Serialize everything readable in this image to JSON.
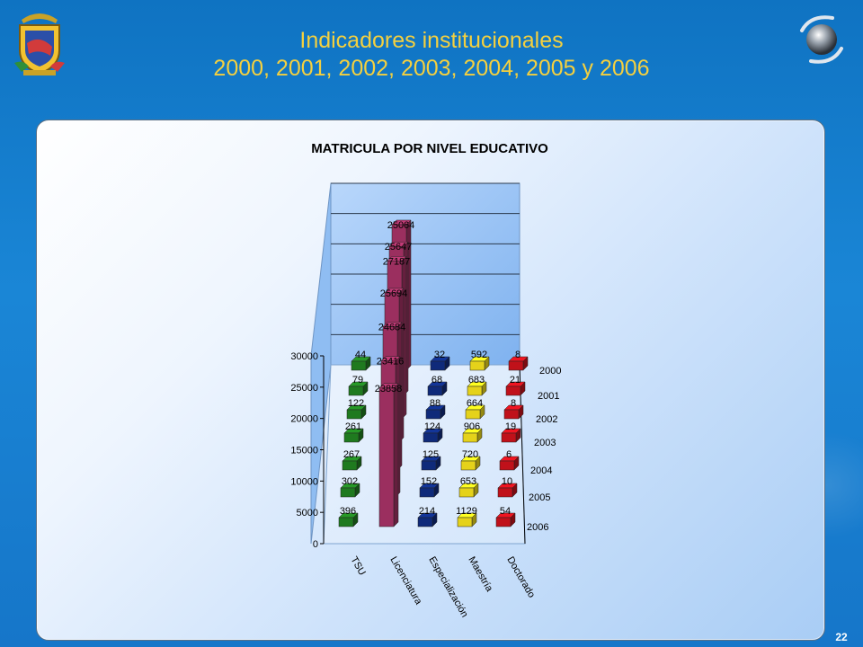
{
  "header": {
    "title_line1": "Indicadores institucionales",
    "title_line2": "2000, 2001, 2002, 2003, 2004, 2005 y 2006"
  },
  "page_number": "22",
  "icons": {
    "logo": "university-crest-icon",
    "globe": "globe-icon"
  },
  "chart_data": {
    "type": "bar",
    "title": "MATRICULA POR NIVEL EDUCATIVO",
    "categories": [
      "TSU",
      "Licenciatura",
      "Especialización",
      "Maestría",
      "Doctorado"
    ],
    "years": [
      "2000",
      "2001",
      "2002",
      "2003",
      "2004",
      "2005",
      "2006"
    ],
    "series": [
      {
        "name": "2000",
        "values": [
          44,
          25064,
          32,
          592,
          8
        ]
      },
      {
        "name": "2001",
        "values": [
          79,
          25647,
          68,
          683,
          21
        ]
      },
      {
        "name": "2002",
        "values": [
          122,
          27187,
          88,
          664,
          8
        ]
      },
      {
        "name": "2003",
        "values": [
          261,
          25694,
          124,
          906,
          19
        ]
      },
      {
        "name": "2004",
        "values": [
          267,
          24684,
          125,
          720,
          6
        ]
      },
      {
        "name": "2005",
        "values": [
          302,
          23416,
          152,
          653,
          10
        ]
      },
      {
        "name": "2006",
        "values": [
          396,
          23858,
          214,
          1129,
          54
        ]
      }
    ],
    "yticks": [
      "0",
      "5000",
      "10000",
      "15000",
      "20000",
      "25000",
      "30000"
    ],
    "ylim": [
      0,
      30000
    ],
    "grid": true,
    "colors": {
      "TSU": "#1f7a1f",
      "Licenciatura": "#9b2f5f",
      "Especialización": "#0f2a7a",
      "Maestría": "#e5d21a",
      "Doctorado": "#c0111a"
    }
  }
}
